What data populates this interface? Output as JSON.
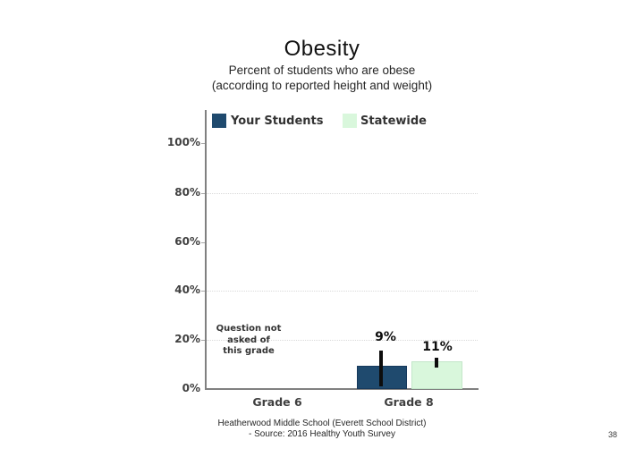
{
  "slide": {
    "title": "Obesity",
    "subtitle_line1": "Percent of students who are obese",
    "subtitle_line2": "(according to reported height and weight)",
    "footer_line1": "Heatherwood Middle School (Everett School District)",
    "footer_line2": "- Source: 2016 Healthy Youth Survey",
    "page_number": "38"
  },
  "legend": {
    "items": [
      {
        "label": "Your Students",
        "color": "#1f4a6e"
      },
      {
        "label": "Statewide",
        "color": "#d9f7dc"
      }
    ]
  },
  "annotation_lines": [
    "Question not",
    "asked of",
    "this grade"
  ],
  "chart_data": {
    "type": "bar",
    "title": "",
    "categories": [
      "Grade 6",
      "Grade 8"
    ],
    "series": [
      {
        "name": "Your Students",
        "color": "#1f4a6e",
        "values": [
          null,
          9
        ],
        "data_labels": [
          "",
          "9%"
        ]
      },
      {
        "name": "Statewide",
        "color": "#d9f7dc",
        "values": [
          null,
          11
        ],
        "data_labels": [
          "",
          "11%"
        ]
      }
    ],
    "error_bars": [
      {
        "series": "Your Students",
        "category": "Grade 8",
        "low": 1,
        "high": 15.5
      },
      {
        "series": "Statewide",
        "category": "Grade 8",
        "low": 8.7,
        "high": 12.7
      }
    ],
    "annotation": "Question not asked of this grade",
    "annotation_category": "Grade 6",
    "xlabel": "",
    "ylabel": "",
    "ylim": [
      0,
      100
    ],
    "y_ticks": [
      "100%",
      "80%",
      "60%",
      "40%",
      "20%",
      "0%"
    ],
    "grid": "dotted horizontal gridlines visible at 20%, 40%, 80%",
    "legend_position": "top",
    "axis_color": "#808080",
    "gridline_color": "#d9d9d9"
  }
}
